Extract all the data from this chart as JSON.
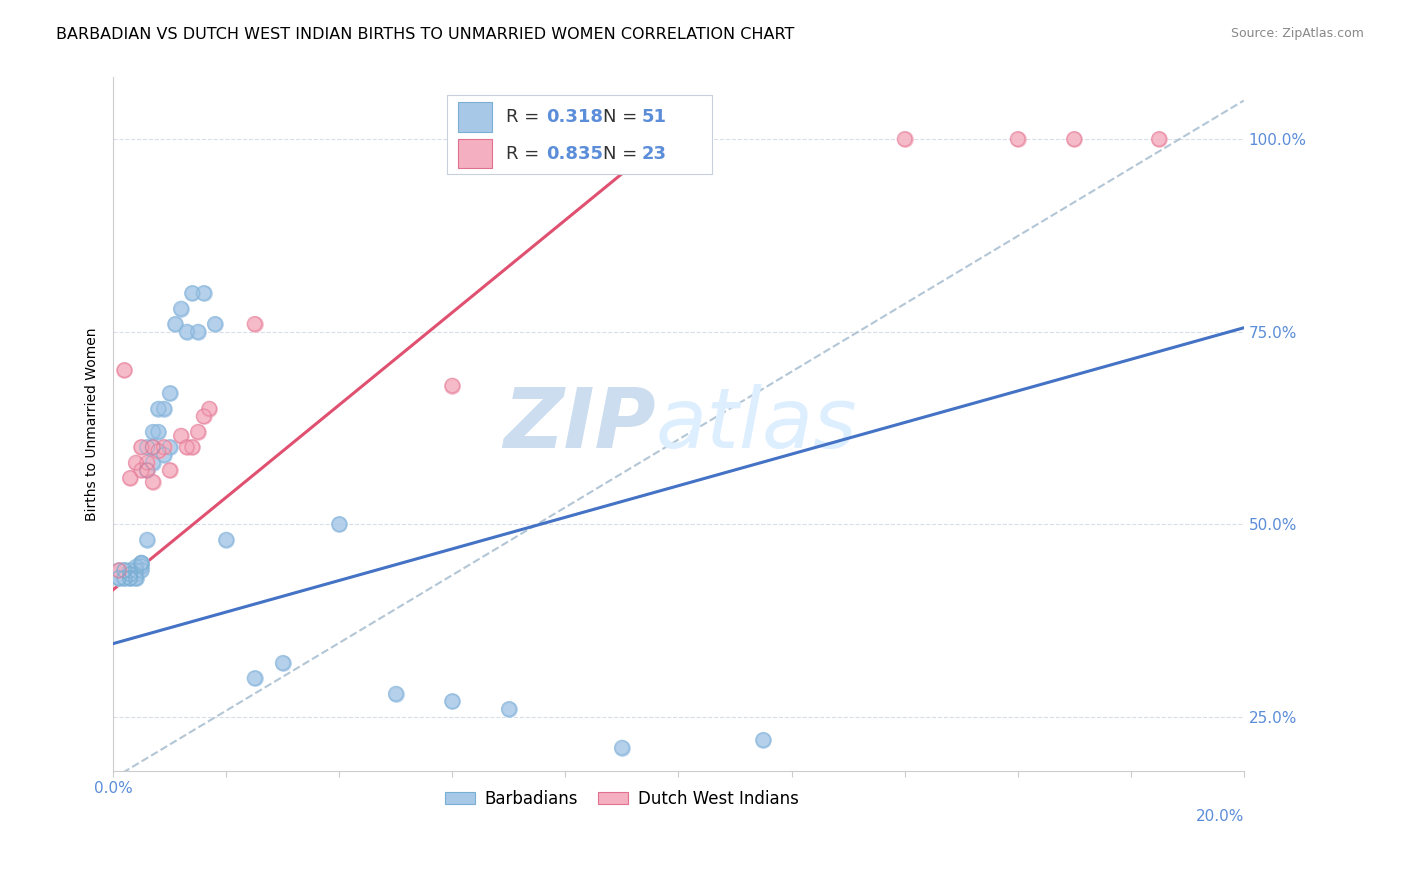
{
  "title": "BARBADIAN VS DUTCH WEST INDIAN BIRTHS TO UNMARRIED WOMEN CORRELATION CHART",
  "source": "Source: ZipAtlas.com",
  "ylabel": "Births to Unmarried Women",
  "xlim": [
    0.0,
    0.2
  ],
  "ylim": [
    0.18,
    1.08
  ],
  "barbadians_x": [
    0.001,
    0.001,
    0.001,
    0.002,
    0.002,
    0.002,
    0.002,
    0.003,
    0.003,
    0.003,
    0.003,
    0.003,
    0.003,
    0.004,
    0.004,
    0.004,
    0.004,
    0.004,
    0.005,
    0.005,
    0.005,
    0.005,
    0.005,
    0.006,
    0.006,
    0.006,
    0.007,
    0.007,
    0.007,
    0.008,
    0.008,
    0.009,
    0.009,
    0.01,
    0.01,
    0.011,
    0.012,
    0.013,
    0.014,
    0.015,
    0.016,
    0.018,
    0.02,
    0.025,
    0.03,
    0.04,
    0.05,
    0.06,
    0.07,
    0.09,
    0.115
  ],
  "barbadians_y": [
    0.44,
    0.43,
    0.43,
    0.44,
    0.44,
    0.43,
    0.43,
    0.435,
    0.44,
    0.435,
    0.43,
    0.43,
    0.43,
    0.43,
    0.44,
    0.435,
    0.43,
    0.445,
    0.45,
    0.445,
    0.44,
    0.45,
    0.448,
    0.48,
    0.57,
    0.6,
    0.6,
    0.62,
    0.58,
    0.62,
    0.65,
    0.59,
    0.65,
    0.67,
    0.6,
    0.76,
    0.78,
    0.75,
    0.8,
    0.75,
    0.8,
    0.76,
    0.48,
    0.3,
    0.32,
    0.5,
    0.28,
    0.27,
    0.26,
    0.21,
    0.22
  ],
  "dutch_x": [
    0.001,
    0.002,
    0.003,
    0.004,
    0.005,
    0.005,
    0.006,
    0.006,
    0.007,
    0.007,
    0.008,
    0.009,
    0.01,
    0.012,
    0.013,
    0.014,
    0.015,
    0.016,
    0.017,
    0.025,
    0.06,
    0.14,
    0.16,
    0.17,
    0.185
  ],
  "dutch_y": [
    0.44,
    0.7,
    0.56,
    0.58,
    0.57,
    0.6,
    0.57,
    0.58,
    0.555,
    0.6,
    0.595,
    0.6,
    0.57,
    0.615,
    0.6,
    0.6,
    0.62,
    0.64,
    0.65,
    0.76,
    0.68,
    1.0,
    1.0,
    1.0,
    1.0
  ],
  "barbadian_color": "#a8c8e8",
  "dutch_color": "#f4b0c0",
  "barbadian_line_color": "#4472c4",
  "dutch_line_color": "#e05070",
  "dashed_line_color": "#a0b8cc",
  "background_color": "#ffffff",
  "grid_color": "#d8dde8",
  "watermark_zip": "ZIP",
  "watermark_atlas": "atlas",
  "title_fontsize": 11.5,
  "source_fontsize": 9
}
